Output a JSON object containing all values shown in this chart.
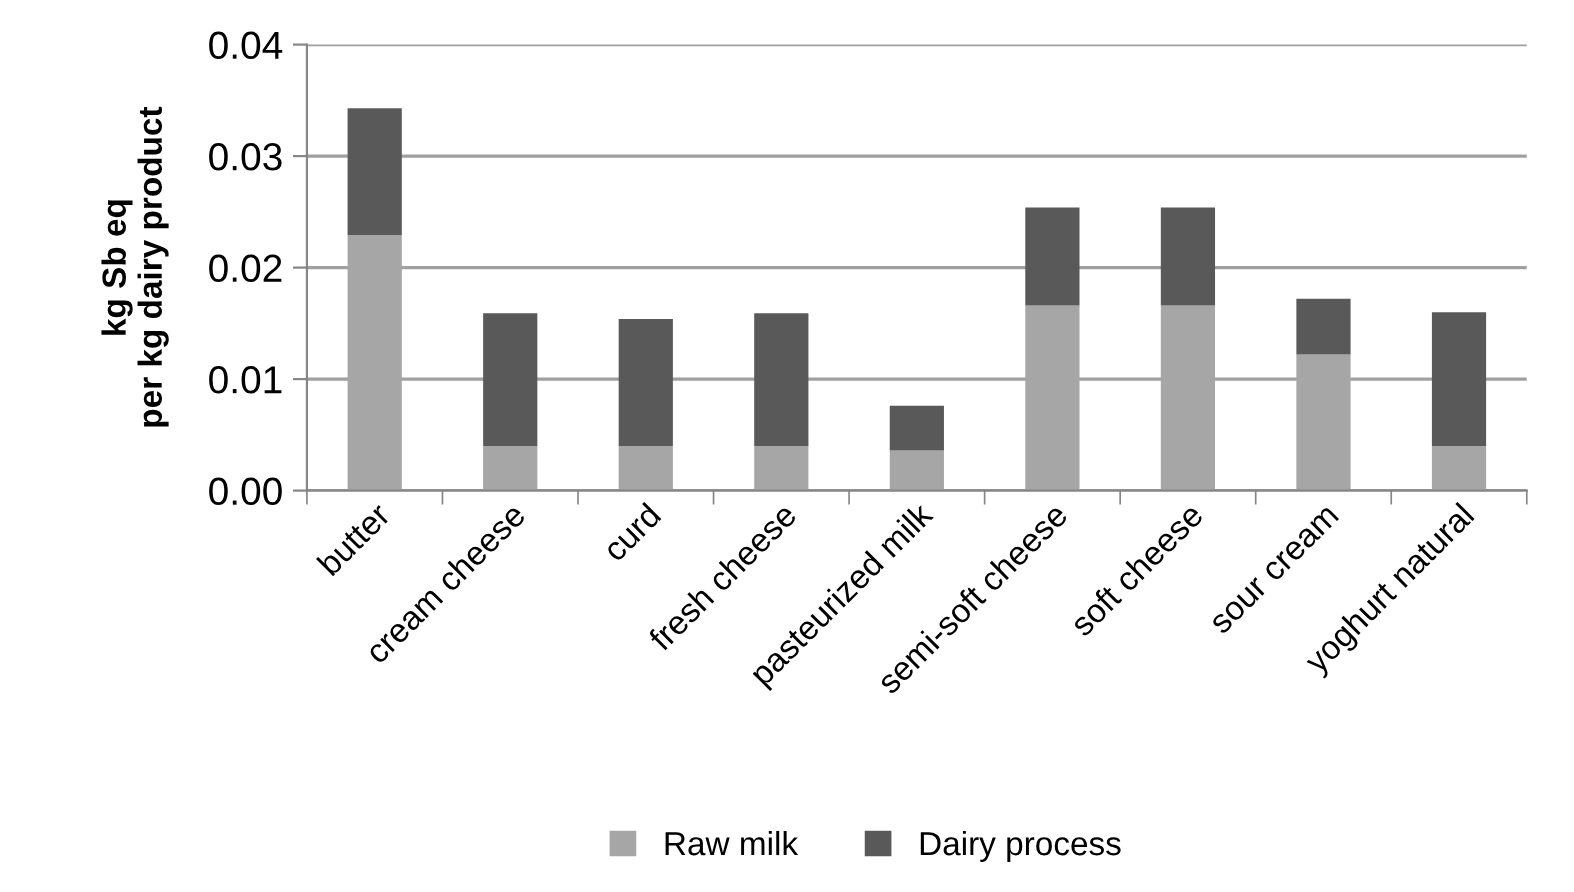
{
  "chart_data": {
    "type": "bar",
    "stacked": true,
    "ylabel": "kg Sb eq\nper kg dairy product",
    "categories": [
      "butter",
      "cream cheese",
      "curd",
      "fresh cheese",
      "pasteurized milk",
      "semi-soft cheese",
      "soft cheese",
      "sour cream",
      "yoghurt natural"
    ],
    "series": [
      {
        "name": "Raw milk",
        "color": "#a6a6a6",
        "values": [
          0.0229,
          0.004,
          0.004,
          0.004,
          0.0036,
          0.0166,
          0.0166,
          0.0122,
          0.004
        ]
      },
      {
        "name": "Dairy process",
        "color": "#595959",
        "values": [
          0.0114,
          0.0119,
          0.0114,
          0.0119,
          0.004,
          0.0088,
          0.0088,
          0.005,
          0.012
        ]
      }
    ],
    "ylim": [
      0,
      0.04
    ],
    "yticks": [
      {
        "value": 0,
        "label": "0.00"
      },
      {
        "value": 0.01,
        "label": "0.01"
      },
      {
        "value": 0.02,
        "label": "0.02"
      },
      {
        "value": 0.03,
        "label": "0.03"
      },
      {
        "value": 0.04,
        "label": "0.04"
      }
    ],
    "grid": "y",
    "legend": "bottom"
  }
}
